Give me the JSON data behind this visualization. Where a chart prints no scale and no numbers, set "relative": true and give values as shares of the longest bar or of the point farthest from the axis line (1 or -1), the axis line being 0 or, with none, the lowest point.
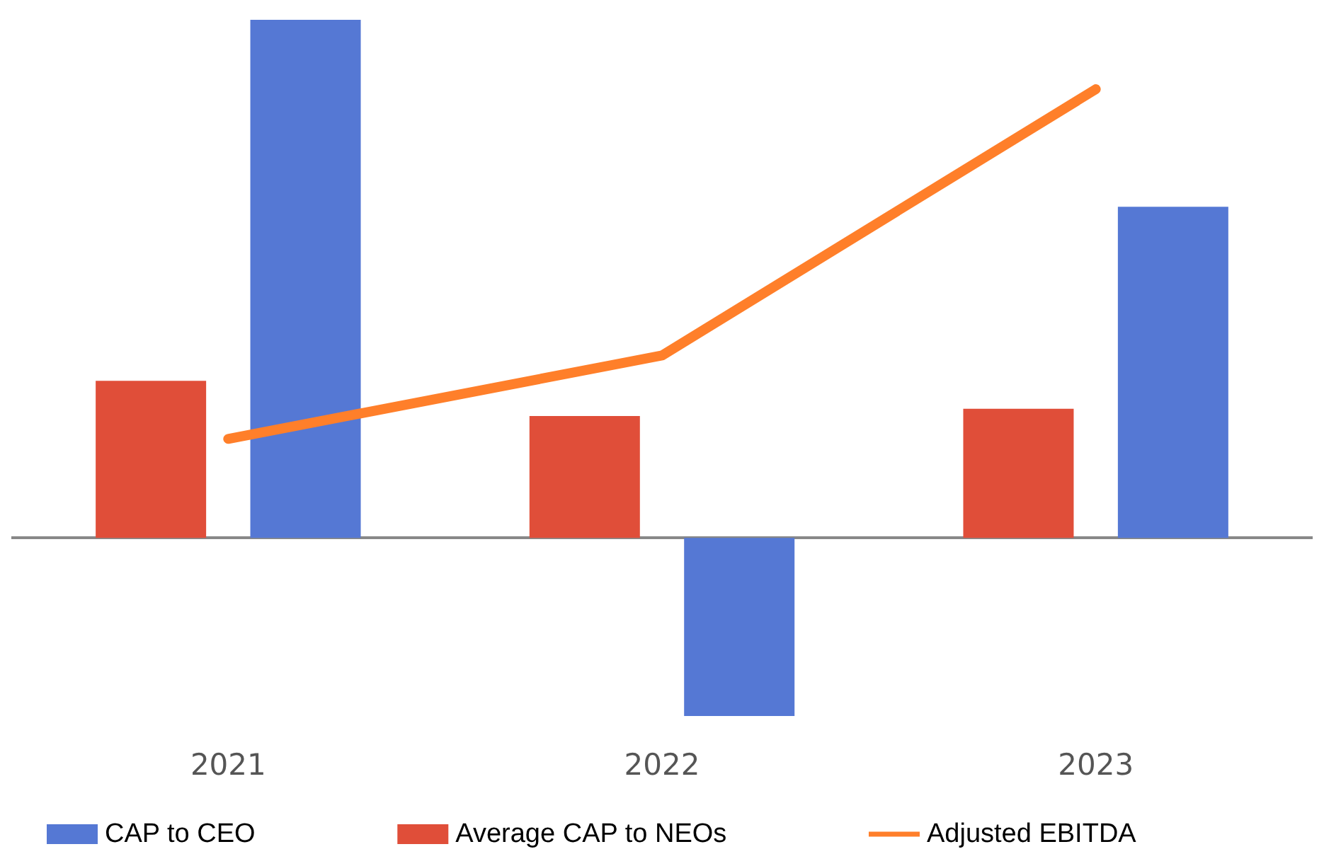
{
  "chart_data": {
    "type": "bar",
    "relative": true,
    "categories": [
      "2021",
      "2022",
      "2023"
    ],
    "series": [
      {
        "name": "CAP to CEO",
        "color": "#5578d4",
        "values": [
          1,
          -0.344,
          0.639
        ]
      },
      {
        "name": "Average CAP to NEOs",
        "color": "#e04e39",
        "values": [
          0.303,
          0.235,
          0.249
        ]
      },
      {
        "name": "Adjusted EBITDA",
        "type": "line",
        "color": "#ff7f2a",
        "values": [
          0.191,
          0.352,
          0.866
        ]
      }
    ],
    "legend": "bottom",
    "grid": false,
    "marker": "none"
  }
}
